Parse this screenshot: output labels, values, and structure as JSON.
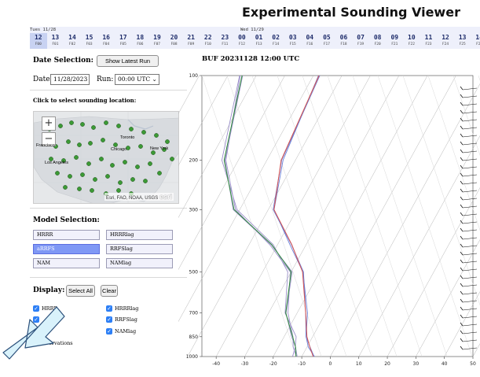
{
  "title": "Experimental Sounding Viewer",
  "timeline": {
    "day1": "Tues 11/28",
    "day2": "Wed 11/29",
    "hours": [
      {
        "h": "12",
        "f": "F00",
        "selected": true
      },
      {
        "h": "13",
        "f": "F01"
      },
      {
        "h": "14",
        "f": "F02"
      },
      {
        "h": "15",
        "f": "F03"
      },
      {
        "h": "16",
        "f": "F04"
      },
      {
        "h": "17",
        "f": "F05"
      },
      {
        "h": "18",
        "f": "F06"
      },
      {
        "h": "19",
        "f": "F07"
      },
      {
        "h": "20",
        "f": "F08"
      },
      {
        "h": "21",
        "f": "F09"
      },
      {
        "h": "22",
        "f": "F10"
      },
      {
        "h": "23",
        "f": "F11"
      },
      {
        "h": "00",
        "f": "F12"
      },
      {
        "h": "01",
        "f": "F13"
      },
      {
        "h": "02",
        "f": "F14"
      },
      {
        "h": "03",
        "f": "F15"
      },
      {
        "h": "04",
        "f": "F16"
      },
      {
        "h": "05",
        "f": "F17"
      },
      {
        "h": "06",
        "f": "F18"
      },
      {
        "h": "07",
        "f": "F19"
      },
      {
        "h": "08",
        "f": "F20"
      },
      {
        "h": "09",
        "f": "F21"
      },
      {
        "h": "10",
        "f": "F22"
      },
      {
        "h": "11",
        "f": "F23"
      },
      {
        "h": "12",
        "f": "F24"
      },
      {
        "h": "13",
        "f": "F25"
      },
      {
        "h": "14",
        "f": "F26"
      },
      {
        "h": "15",
        "f": "F27"
      }
    ]
  },
  "date_selection": {
    "heading": "Date Selection:",
    "show_latest": "Show Latest Run",
    "date_label": "Date:",
    "date_value": "11/28/2023",
    "run_label": "Run:",
    "run_value": "00:00 UTC"
  },
  "location": {
    "heading": "Click to select sounding location:",
    "zoom_in": "+",
    "zoom_out": "−",
    "attribution": "Esri, FAO, NOAA, USGS",
    "esri_logo": "esri",
    "city_labels": [
      "Toronto",
      "New York",
      "Chicago",
      "Los Angeles",
      "Francisco"
    ]
  },
  "model_selection": {
    "heading": "Model Selection:",
    "models": [
      {
        "label": "HRRR",
        "active": false
      },
      {
        "label": "HRRRlag",
        "active": false
      },
      {
        "label": "aRRFS",
        "active": true
      },
      {
        "label": "RRFSlag",
        "active": false
      },
      {
        "label": "NAM",
        "active": false
      },
      {
        "label": "NAMlag",
        "active": false
      }
    ]
  },
  "display": {
    "heading": "Display:",
    "select_all": "Select All",
    "clear": "Clear",
    "checks": [
      {
        "label": "HRRR",
        "checked": true
      },
      {
        "label": "HRRRlag",
        "checked": true
      },
      {
        "label": "RRFSlag",
        "checked": true
      },
      {
        "label": "NAMlag",
        "checked": true
      }
    ],
    "partial_label": "ervations"
  },
  "sounding": {
    "title": "BUF 20231128 12:00 UTC",
    "pressure_ticks": [
      "100",
      "200",
      "300",
      "500",
      "700",
      "850",
      "1000"
    ],
    "temp_ticks": [
      "-40",
      "-30",
      "-20",
      "-10",
      "0",
      "10",
      "20",
      "30",
      "40",
      "50"
    ],
    "colors": {
      "temperature": "#d9534f",
      "model_temperature": "#6a7fd6",
      "dewpoint": "#2e8b3a",
      "model_dewpoint": "#9a8fc9"
    }
  },
  "chart_data": {
    "type": "line",
    "title": "BUF 20231128 12:00 UTC",
    "xlabel": "",
    "ylabel": "",
    "xlim": [
      -45,
      50
    ],
    "ylim_log": [
      1000,
      100
    ],
    "series": [
      {
        "kind": "temperature",
        "points": [
          [
            1000,
            -6
          ],
          [
            925,
            -9
          ],
          [
            850,
            -12
          ],
          [
            700,
            -17
          ],
          [
            500,
            -26
          ],
          [
            400,
            -35
          ],
          [
            300,
            -48
          ],
          [
            200,
            -55
          ],
          [
            100,
            -58
          ]
        ]
      },
      {
        "kind": "dewpoint",
        "points": [
          [
            1000,
            -12
          ],
          [
            925,
            -14
          ],
          [
            850,
            -17
          ],
          [
            700,
            -24
          ],
          [
            500,
            -30
          ],
          [
            400,
            -42
          ],
          [
            300,
            -62
          ],
          [
            200,
            -75
          ],
          [
            100,
            -85
          ]
        ]
      }
    ]
  }
}
